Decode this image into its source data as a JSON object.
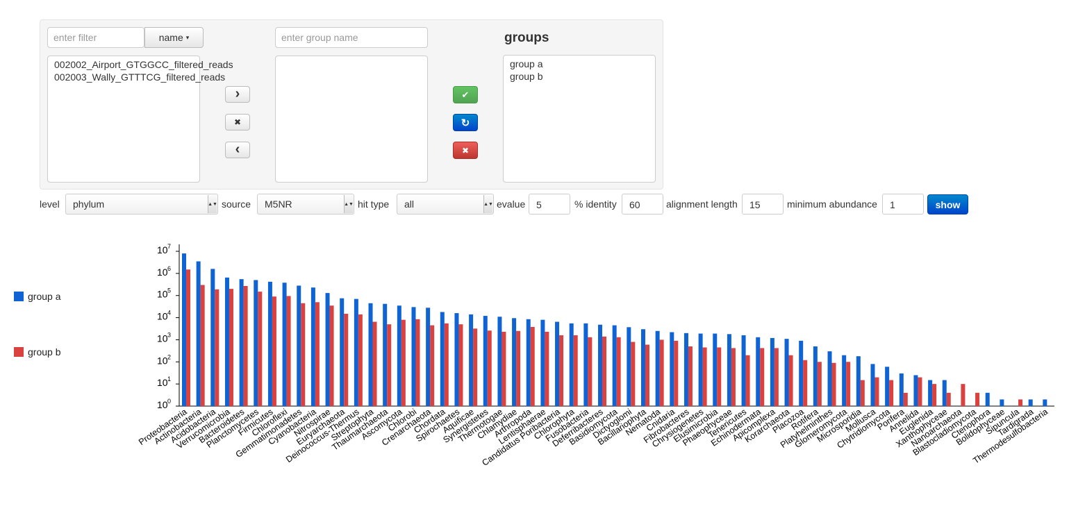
{
  "filter": {
    "placeholder": "enter filter",
    "sort_label": "name",
    "sort_caret": "▾"
  },
  "samples": [
    "002002_Airport_GTGGCC_filtered_reads",
    "002003_Wally_GTTTCG_filtered_reads"
  ],
  "group_name": {
    "placeholder": "enter group name"
  },
  "groups": {
    "title": "groups",
    "items": [
      "group a",
      "group b"
    ]
  },
  "icons": {
    "add": "›",
    "remove": "✖",
    "back": "‹",
    "ok": "✔",
    "refresh": "↻",
    "delete": "✖"
  },
  "controls": {
    "level_label": "level",
    "level_value": "phylum",
    "source_label": "source",
    "source_value": "M5NR",
    "hittype_label": "hit type",
    "hittype_value": "all",
    "evalue_label": "evalue",
    "evalue_value": "5",
    "identity_label": "% identity",
    "identity_value": "60",
    "alignment_label": "alignment length",
    "alignment_value": "15",
    "abundance_label": "minimum abundance",
    "abundance_value": "1",
    "show_label": "show",
    "select_arrow": "▲▼"
  },
  "colors": {
    "group_a": "#0f63d2",
    "group_b": "#d9423f"
  },
  "chart_data": {
    "type": "bar",
    "yscale": "log",
    "ylim": [
      1,
      10000000
    ],
    "yticks": [
      {
        "value": 1,
        "base": "10",
        "exp": "0"
      },
      {
        "value": 10,
        "base": "10",
        "exp": "1"
      },
      {
        "value": 100,
        "base": "10",
        "exp": "2"
      },
      {
        "value": 1000,
        "base": "10",
        "exp": "3"
      },
      {
        "value": 10000,
        "base": "10",
        "exp": "4"
      },
      {
        "value": 100000,
        "base": "10",
        "exp": "5"
      },
      {
        "value": 1000000,
        "base": "10",
        "exp": "6"
      },
      {
        "value": 10000000,
        "base": "10",
        "exp": "7"
      }
    ],
    "categories": [
      "Proteobacteria",
      "Actinobacteria",
      "Acidobacteria",
      "Verrucomicrobia",
      "Bacteroidetes",
      "Planctomycetes",
      "Firmicutes",
      "Chloroflexi",
      "Gemmatimonadetes",
      "Cyanobacteria",
      "Nitrospirae",
      "Euryarchaeota",
      "Deinococcus-Thermus",
      "Streptophyta",
      "Thaumarchaeota",
      "Ascomycota",
      "Chlorobi",
      "Crenarchaeota",
      "Chordata",
      "Spirochaetes",
      "Aquificae",
      "Synergistetes",
      "Thermotogae",
      "Chlamydiae",
      "Arthropoda",
      "Lentisphaerae",
      "Candidatus Poribacteria",
      "Chlorophyta",
      "Fusobacteria",
      "Deferribacteres",
      "Basidiomycota",
      "Dictyoglomi",
      "Bacillariophyta",
      "Nematoda",
      "Cnidaria",
      "Fibrobacteres",
      "Chrysiogenetes",
      "Elusimicrobia",
      "Phaeophyceae",
      "Tenericutes",
      "Echinodermata",
      "Apicomplexa",
      "Korarchaeota",
      "Placozoa",
      "Rotifera",
      "Platyhelminthes",
      "Glomeromycota",
      "Microsporidia",
      "Mollusca",
      "Chytridiomycota",
      "Porifera",
      "Annelida",
      "Euglenida",
      "Xanthophyceae",
      "Nanoarchaeota",
      "Blastocladiomycota",
      "Ctenophora",
      "Bolidophyceae",
      "Sipuncula",
      "Tardigrada",
      "Thermodesulfobacteria"
    ],
    "series": [
      {
        "name": "group a",
        "values": [
          8000000,
          3500000,
          1600000,
          650000,
          550000,
          500000,
          420000,
          380000,
          280000,
          230000,
          130000,
          75000,
          70000,
          45000,
          42000,
          35000,
          30000,
          28000,
          18000,
          16000,
          14000,
          12000,
          11000,
          9500,
          8500,
          8000,
          6500,
          5500,
          5500,
          4800,
          4500,
          3700,
          3000,
          2500,
          2200,
          2000,
          1900,
          1900,
          1800,
          1600,
          1300,
          1200,
          1100,
          900,
          500,
          300,
          200,
          180,
          80,
          60,
          30,
          25,
          15,
          15,
          0,
          0,
          4,
          2,
          0,
          2,
          2
        ]
      },
      {
        "name": "group b",
        "values": [
          1500000,
          300000,
          190000,
          200000,
          270000,
          150000,
          90000,
          95000,
          45000,
          50000,
          35000,
          15000,
          14000,
          6500,
          5000,
          8000,
          8500,
          4500,
          5500,
          5000,
          3200,
          2600,
          2300,
          2500,
          3800,
          2300,
          1600,
          1600,
          1300,
          1400,
          1300,
          800,
          600,
          1000,
          900,
          500,
          450,
          450,
          420,
          200,
          420,
          420,
          200,
          120,
          100,
          90,
          100,
          15,
          20,
          15,
          4,
          20,
          10,
          4,
          10,
          4,
          0,
          0,
          2,
          0,
          0
        ]
      }
    ]
  }
}
